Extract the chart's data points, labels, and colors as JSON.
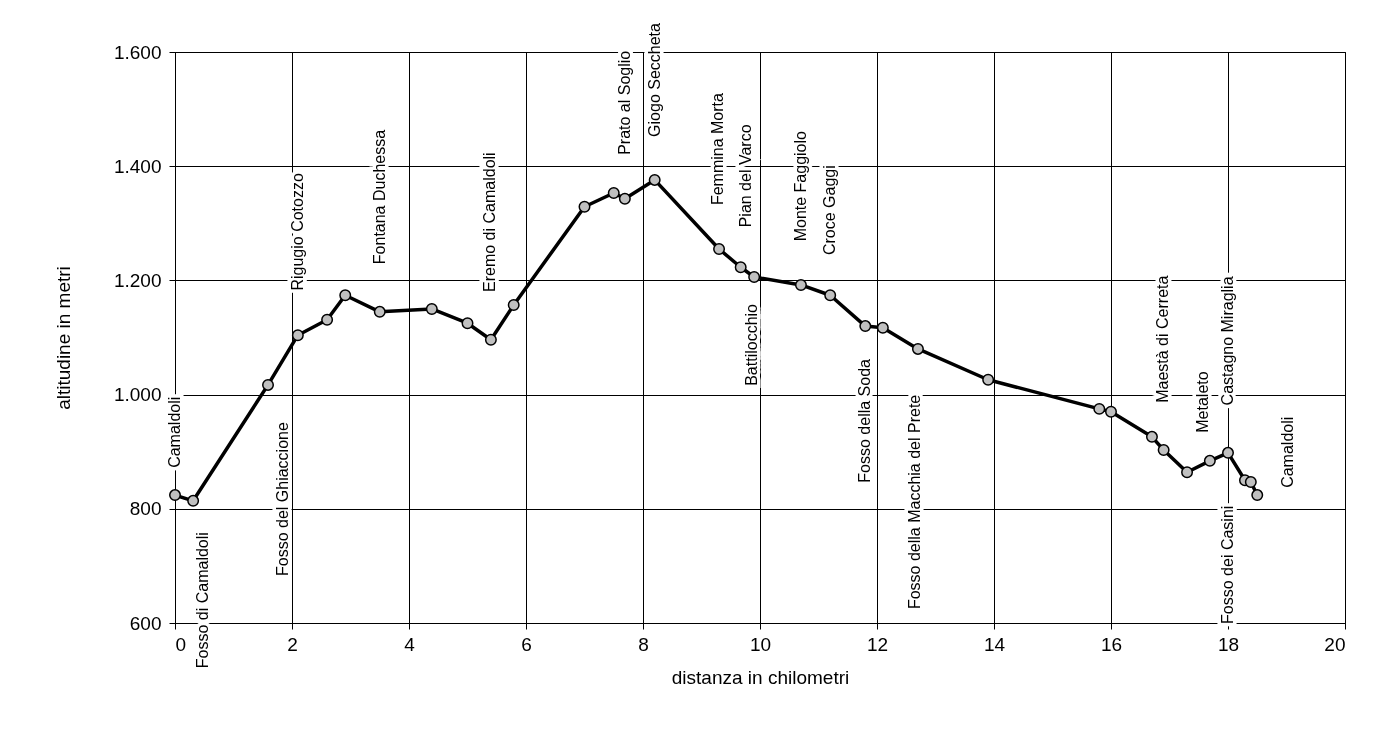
{
  "chart_data": {
    "type": "line",
    "xlabel": "distanza in chilometri",
    "ylabel": "altitudine  in metri",
    "xlim": [
      0,
      20
    ],
    "xticks": [
      0,
      2,
      4,
      6,
      8,
      10,
      12,
      14,
      16,
      18,
      20
    ],
    "ylim": [
      600,
      1600
    ],
    "yticks": [
      600,
      800,
      {
        "value": 1000,
        "label": "1.000"
      },
      {
        "value": 1200,
        "label": "1.200"
      },
      {
        "value": 1400,
        "label": "1.400"
      },
      {
        "value": 1600,
        "label": "1.600"
      }
    ],
    "grid": true,
    "marker": "circle",
    "line_style": "solid",
    "series": [
      {
        "color": "#000000",
        "x": [
          0,
          0.31,
          1.59,
          2.1,
          2.6,
          2.91,
          3.5,
          4.39,
          5.0,
          5.4,
          5.79,
          7.0,
          7.5,
          7.69,
          8.2,
          9.3,
          9.67,
          9.9,
          10.7,
          11.2,
          11.8,
          12.1,
          12.7,
          13.9,
          15.8,
          16.0,
          16.7,
          16.9,
          17.3,
          17.69,
          18.0,
          18.29,
          18.39,
          18.5
        ],
        "values": [
          824,
          814,
          1017,
          1104,
          1131,
          1174,
          1145,
          1150,
          1125,
          1096,
          1157,
          1329,
          1353,
          1343,
          1376,
          1255,
          1223,
          1206,
          1192,
          1174,
          1120,
          1117,
          1080,
          1026,
          975,
          970,
          926,
          903,
          864,
          884,
          898,
          850,
          847,
          824
        ]
      }
    ],
    "annotations": [
      "Camaldoli",
      "Fosso di Camaldoli",
      "Fosso del Ghiaccione",
      "Rigugio Cotozzo",
      "Fontana Duchessa",
      "Eremo di Camaldoli",
      "Prato al Soglio",
      "Giogo Seccheta",
      "Femmina Morta",
      "Pian del Varco",
      "Battilocchio",
      "Monte Faggiolo",
      "Croce Gaggi",
      "Fosso della Soda",
      "Fosso della Macchia del Prete",
      "Maestà di Cerreta",
      "Metaleto",
      "Castagno Miraglia",
      "Fosso dei Casini",
      "Camaldoli"
    ]
  }
}
